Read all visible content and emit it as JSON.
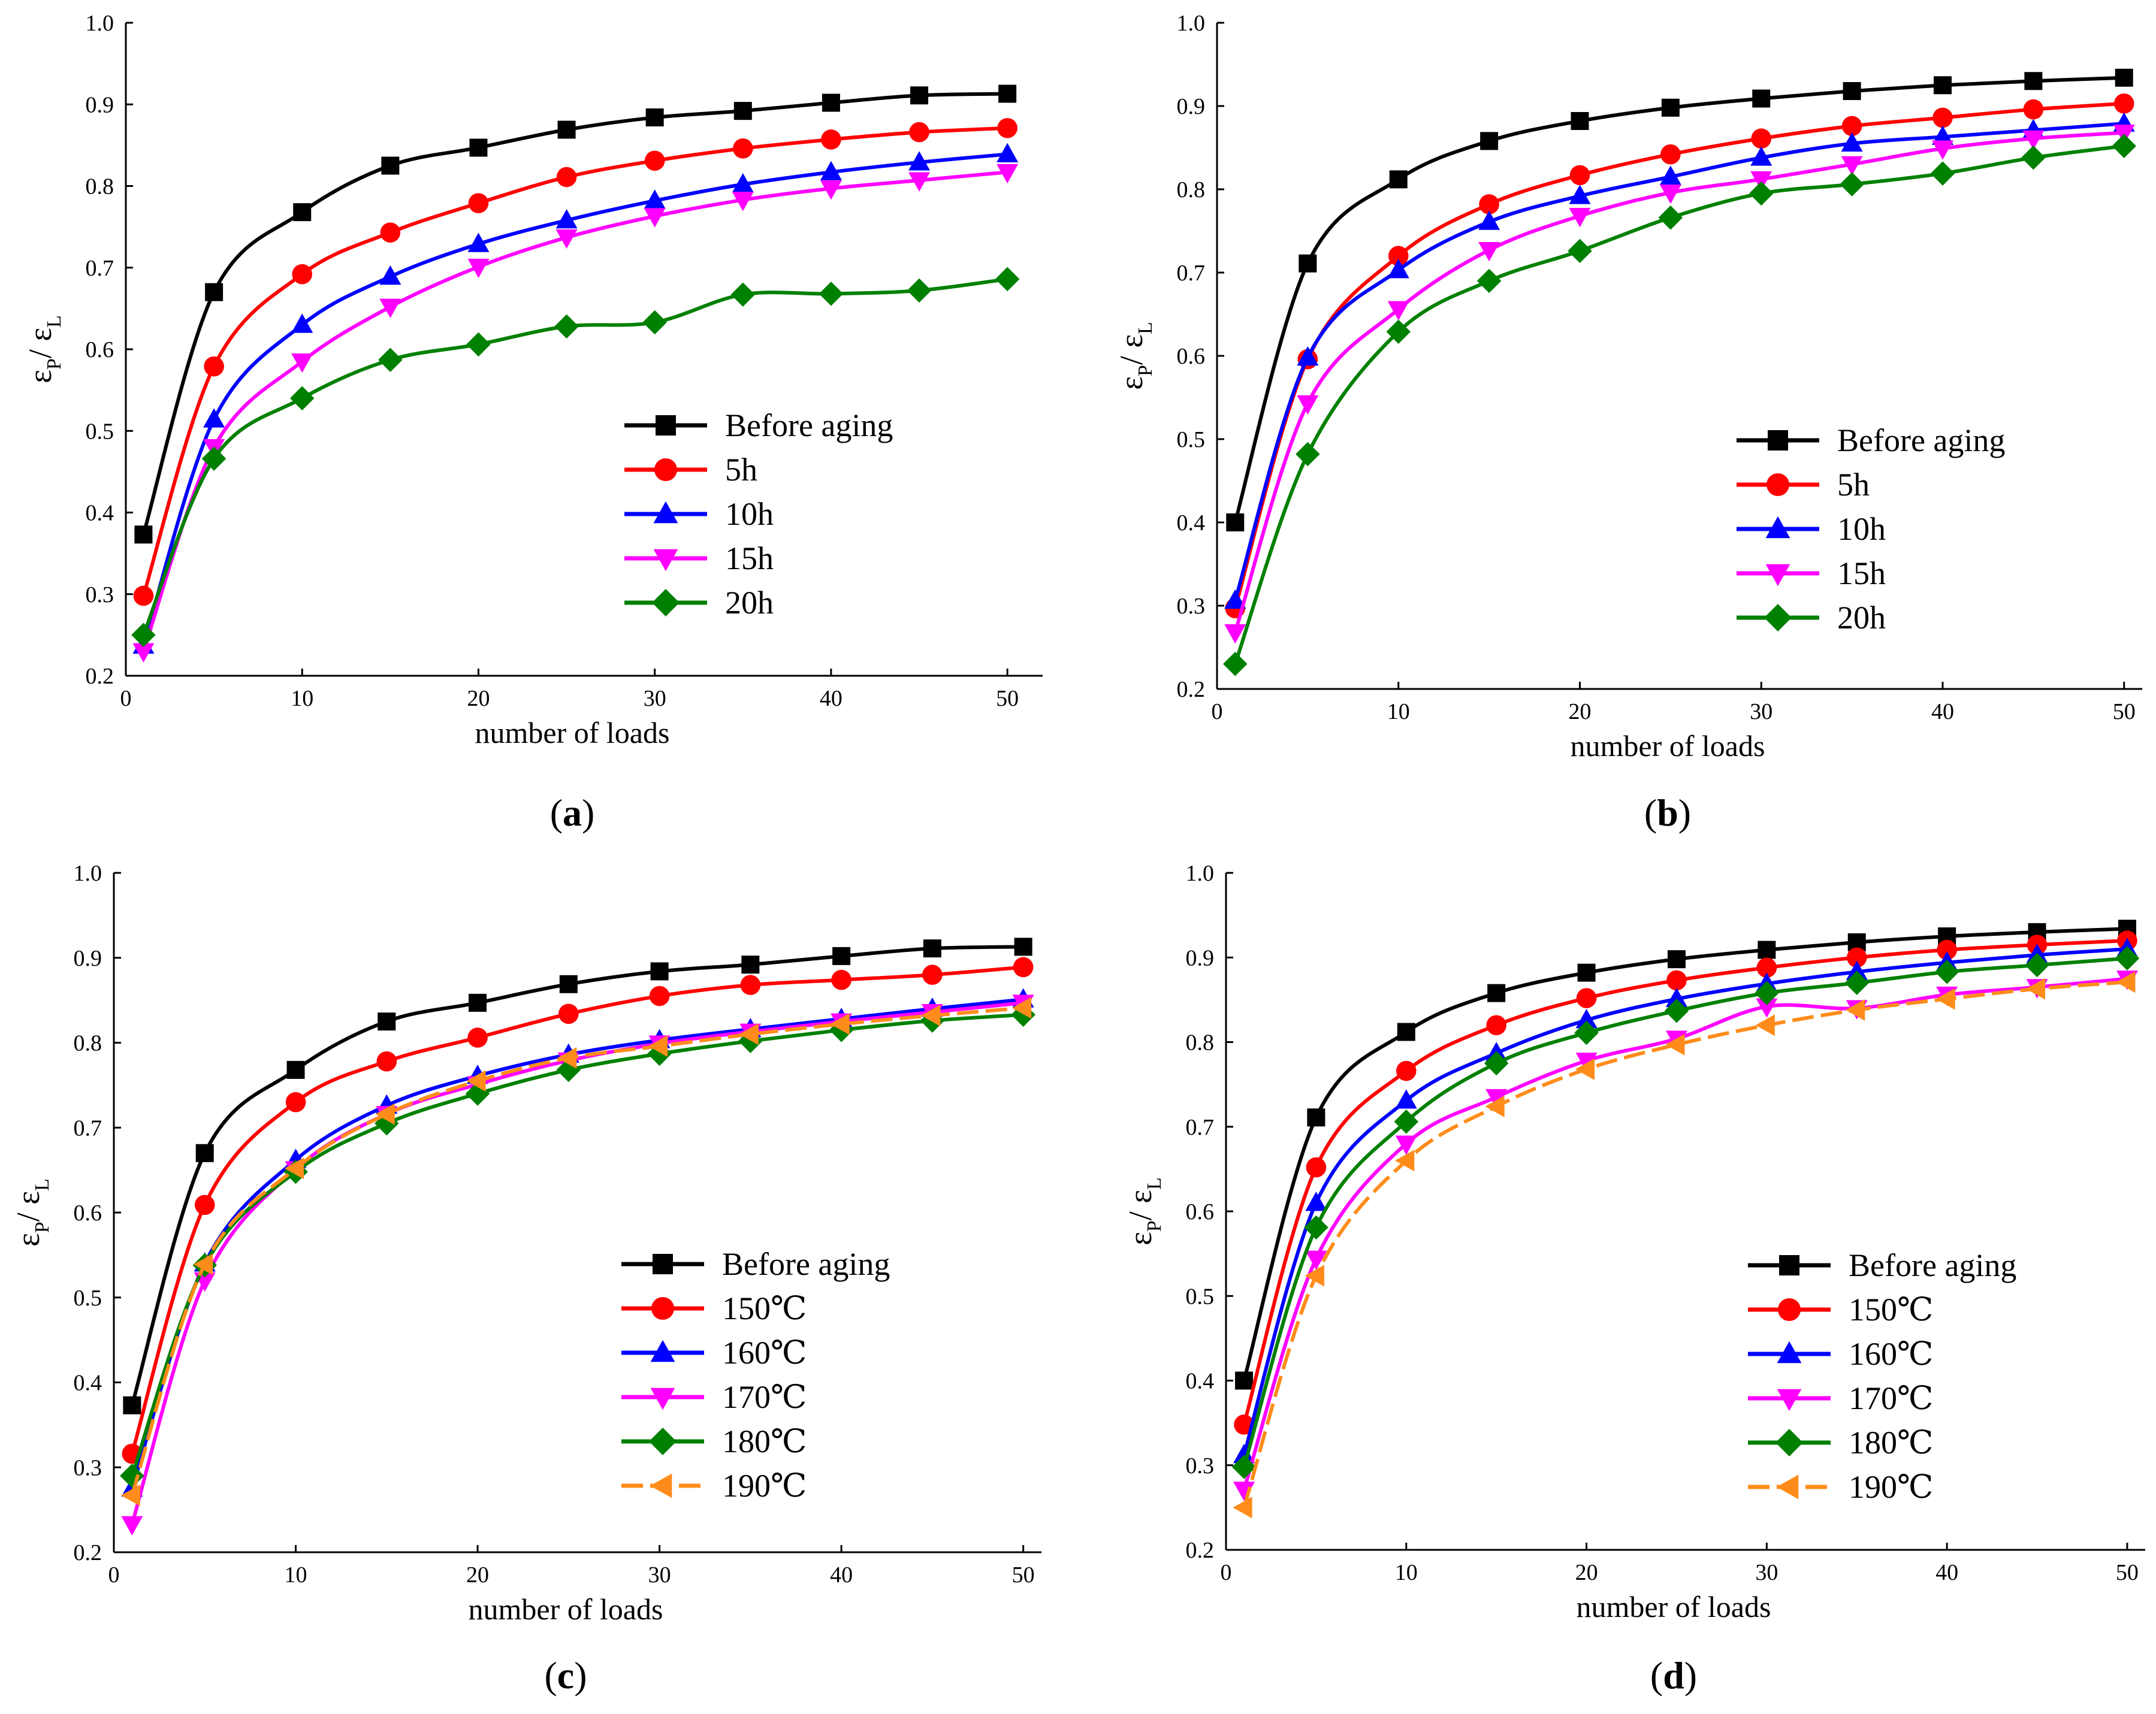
{
  "chart_data": [
    {
      "type": "line",
      "panel_label": "a",
      "xlabel": "number of loads",
      "ylabel": {
        "eps": "ε",
        "sub_p": "P",
        "slash": "/",
        "sub_l": "L"
      },
      "xlim": [
        0,
        52
      ],
      "ylim": [
        0.2,
        1.0
      ],
      "xticks": [
        0,
        10,
        20,
        30,
        40,
        50
      ],
      "yticks": [
        0.2,
        0.3,
        0.4,
        0.5,
        0.6,
        0.7,
        0.8,
        0.9,
        1.0
      ],
      "legend_position": "right",
      "x": [
        1,
        5,
        10,
        15,
        20,
        25,
        30,
        35,
        40,
        45,
        50
      ],
      "series": [
        {
          "name": "Before aging",
          "color": "#000000",
          "marker": "square",
          "values": [
            0.373,
            0.67,
            0.768,
            0.825,
            0.847,
            0.869,
            0.884,
            0.892,
            0.902,
            0.911,
            0.913
          ]
        },
        {
          "name": "5h",
          "color": "#ff0000",
          "marker": "circle",
          "values": [
            0.298,
            0.579,
            0.692,
            0.743,
            0.779,
            0.811,
            0.831,
            0.846,
            0.857,
            0.866,
            0.871
          ]
        },
        {
          "name": "10h",
          "color": "#0000ff",
          "marker": "triangle-up",
          "values": [
            0.237,
            0.514,
            0.63,
            0.689,
            0.729,
            0.758,
            0.782,
            0.802,
            0.817,
            0.829,
            0.839
          ]
        },
        {
          "name": "15h",
          "color": "#ff00ff",
          "marker": "triangle-down",
          "values": [
            0.23,
            0.48,
            0.585,
            0.652,
            0.701,
            0.737,
            0.763,
            0.783,
            0.797,
            0.807,
            0.817
          ]
        },
        {
          "name": "20h",
          "color": "#008000",
          "marker": "diamond",
          "values": [
            0.25,
            0.466,
            0.54,
            0.587,
            0.606,
            0.628,
            0.633,
            0.667,
            0.668,
            0.672,
            0.686
          ]
        }
      ]
    },
    {
      "type": "line",
      "panel_label": "b",
      "xlabel": "number of loads",
      "ylabel": {
        "eps": "ε",
        "sub_p": "P",
        "slash": "/",
        "sub_l": "L"
      },
      "xlim": [
        0,
        51
      ],
      "ylim": [
        0.2,
        1.0
      ],
      "xticks": [
        0,
        10,
        20,
        30,
        40,
        50
      ],
      "yticks": [
        0.2,
        0.3,
        0.4,
        0.5,
        0.6,
        0.7,
        0.8,
        0.9,
        1.0
      ],
      "legend_position": "right",
      "x": [
        1,
        5,
        10,
        15,
        20,
        25,
        30,
        35,
        40,
        45,
        50
      ],
      "series": [
        {
          "name": "Before aging",
          "color": "#000000",
          "marker": "square",
          "values": [
            0.4,
            0.711,
            0.812,
            0.858,
            0.882,
            0.898,
            0.909,
            0.918,
            0.925,
            0.93,
            0.934
          ]
        },
        {
          "name": "5h",
          "color": "#ff0000",
          "marker": "circle",
          "values": [
            0.297,
            0.596,
            0.72,
            0.782,
            0.817,
            0.842,
            0.861,
            0.876,
            0.886,
            0.896,
            0.903
          ]
        },
        {
          "name": "10h",
          "color": "#0000ff",
          "marker": "triangle-up",
          "values": [
            0.306,
            0.598,
            0.703,
            0.761,
            0.792,
            0.815,
            0.838,
            0.855,
            0.863,
            0.871,
            0.879
          ]
        },
        {
          "name": "15h",
          "color": "#ff00ff",
          "marker": "triangle-down",
          "values": [
            0.268,
            0.543,
            0.656,
            0.727,
            0.768,
            0.796,
            0.812,
            0.83,
            0.849,
            0.861,
            0.868
          ]
        },
        {
          "name": "20h",
          "color": "#008000",
          "marker": "diamond",
          "values": [
            0.23,
            0.482,
            0.629,
            0.69,
            0.726,
            0.766,
            0.795,
            0.806,
            0.819,
            0.838,
            0.852
          ]
        }
      ]
    },
    {
      "type": "line",
      "panel_label": "c",
      "xlabel": "number of loads",
      "ylabel": {
        "eps": "ε",
        "sub_p": "P",
        "slash": "/",
        "sub_l": "L"
      },
      "xlim": [
        0,
        51
      ],
      "ylim": [
        0.2,
        1.0
      ],
      "xticks": [
        0,
        10,
        20,
        30,
        40,
        50
      ],
      "yticks": [
        0.2,
        0.3,
        0.4,
        0.5,
        0.6,
        0.7,
        0.8,
        0.9,
        1.0
      ],
      "legend_position": "right",
      "x": [
        1,
        5,
        10,
        15,
        20,
        25,
        30,
        35,
        40,
        45,
        50
      ],
      "series": [
        {
          "name": "Before aging",
          "color": "#000000",
          "marker": "square",
          "values": [
            0.373,
            0.67,
            0.768,
            0.825,
            0.847,
            0.869,
            0.884,
            0.892,
            0.902,
            0.911,
            0.913
          ]
        },
        {
          "name": "150℃",
          "color": "#ff0000",
          "marker": "circle",
          "values": [
            0.316,
            0.609,
            0.73,
            0.778,
            0.806,
            0.834,
            0.855,
            0.868,
            0.874,
            0.88,
            0.889
          ]
        },
        {
          "name": "160℃",
          "color": "#0000ff",
          "marker": "triangle-up",
          "values": [
            0.275,
            0.54,
            0.662,
            0.726,
            0.761,
            0.786,
            0.803,
            0.816,
            0.828,
            0.84,
            0.851
          ]
        },
        {
          "name": "170℃",
          "color": "#ff00ff",
          "marker": "triangle-down",
          "values": [
            0.233,
            0.52,
            0.651,
            0.716,
            0.751,
            0.779,
            0.799,
            0.813,
            0.825,
            0.836,
            0.847
          ]
        },
        {
          "name": "180℃",
          "color": "#008000",
          "marker": "diamond",
          "values": [
            0.29,
            0.538,
            0.648,
            0.705,
            0.74,
            0.768,
            0.787,
            0.802,
            0.815,
            0.826,
            0.833
          ]
        },
        {
          "name": "190℃",
          "color": "#ff8c1a",
          "marker": "triangle-left",
          "dashed": true,
          "values": [
            0.267,
            0.539,
            0.652,
            0.716,
            0.755,
            0.782,
            0.796,
            0.81,
            0.822,
            0.832,
            0.841
          ]
        }
      ]
    },
    {
      "type": "line",
      "panel_label": "d",
      "xlabel": "number of loads",
      "ylabel": {
        "eps": "ε",
        "sub_p": "P",
        "slash": "/",
        "sub_l": "L"
      },
      "xlim": [
        0,
        51
      ],
      "ylim": [
        0.2,
        1.0
      ],
      "xticks": [
        0,
        10,
        20,
        30,
        40,
        50
      ],
      "yticks": [
        0.2,
        0.3,
        0.4,
        0.5,
        0.6,
        0.7,
        0.8,
        0.9,
        1.0
      ],
      "legend_position": "right",
      "x": [
        1,
        5,
        10,
        15,
        20,
        25,
        30,
        35,
        40,
        45,
        50
      ],
      "series": [
        {
          "name": "Before aging",
          "color": "#000000",
          "marker": "square",
          "values": [
            0.4,
            0.711,
            0.812,
            0.858,
            0.882,
            0.898,
            0.909,
            0.918,
            0.925,
            0.93,
            0.934
          ]
        },
        {
          "name": "150℃",
          "color": "#ff0000",
          "marker": "circle",
          "values": [
            0.348,
            0.652,
            0.766,
            0.82,
            0.852,
            0.873,
            0.888,
            0.9,
            0.909,
            0.915,
            0.92
          ]
        },
        {
          "name": "160℃",
          "color": "#0000ff",
          "marker": "triangle-up",
          "values": [
            0.312,
            0.61,
            0.731,
            0.787,
            0.826,
            0.851,
            0.869,
            0.883,
            0.894,
            0.903,
            0.91
          ]
        },
        {
          "name": "170℃",
          "color": "#ff00ff",
          "marker": "triangle-down",
          "values": [
            0.271,
            0.544,
            0.68,
            0.735,
            0.778,
            0.804,
            0.842,
            0.84,
            0.856,
            0.865,
            0.875
          ]
        },
        {
          "name": "180℃",
          "color": "#008000",
          "marker": "diamond",
          "values": [
            0.298,
            0.581,
            0.706,
            0.775,
            0.811,
            0.837,
            0.858,
            0.87,
            0.883,
            0.891,
            0.899
          ]
        },
        {
          "name": "190℃",
          "color": "#ff8c1a",
          "marker": "triangle-left",
          "dashed": true,
          "values": [
            0.25,
            0.524,
            0.66,
            0.724,
            0.768,
            0.797,
            0.82,
            0.838,
            0.851,
            0.863,
            0.871
          ]
        }
      ]
    }
  ]
}
